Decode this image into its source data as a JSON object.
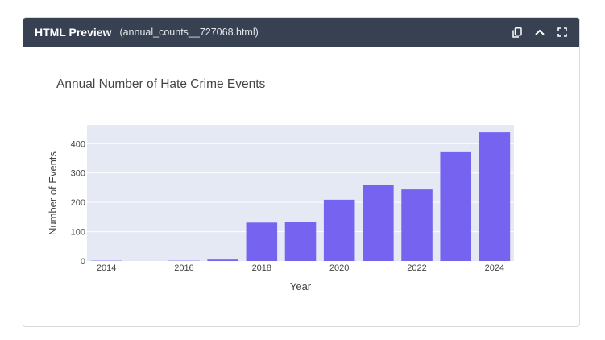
{
  "header": {
    "title": "HTML Preview",
    "filename": "(annual_counts__727068.html)",
    "icons": [
      "copy-icon",
      "chevron-up-icon",
      "fullscreen-icon"
    ]
  },
  "chart_data": {
    "type": "bar",
    "title": "Annual Number of Hate Crime Events",
    "xlabel": "Year",
    "ylabel": "Number of Events",
    "categories": [
      2014,
      2015,
      2016,
      2017,
      2018,
      2019,
      2020,
      2021,
      2022,
      2023,
      2024
    ],
    "values": [
      1,
      0,
      1,
      5,
      131,
      133,
      209,
      259,
      244,
      371,
      439
    ],
    "ylim": [
      0,
      464
    ],
    "xticks": [
      "2014",
      "2016",
      "2018",
      "2020",
      "2022",
      "2024"
    ],
    "yticks": [
      "0",
      "100",
      "200",
      "300",
      "400"
    ],
    "grid": true,
    "colors": {
      "bar": "#7663f0",
      "plot_bg": "#e5e9f4",
      "grid": "#ffffff"
    }
  }
}
